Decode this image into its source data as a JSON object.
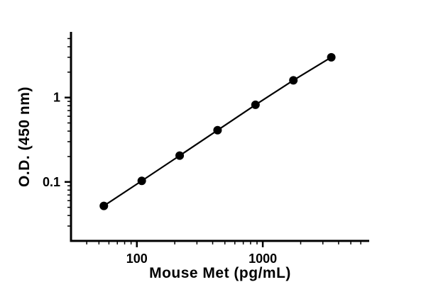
{
  "chart_data": {
    "type": "line",
    "title": "",
    "xlabel": "Mouse Met (pg/mL)",
    "ylabel": "O.D. (450 nm)",
    "xscale": "log",
    "yscale": "log",
    "xlim": [
      30,
      7000
    ],
    "ylim": [
      0.02,
      6
    ],
    "x": [
      54.7,
      109.4,
      218.8,
      437.5,
      875,
      1750,
      3500
    ],
    "y": [
      0.052,
      0.103,
      0.205,
      0.41,
      0.82,
      1.6,
      3.0
    ],
    "xticks": [
      {
        "value": 100,
        "label": "100"
      },
      {
        "value": 1000,
        "label": "1000"
      }
    ],
    "yticks": [
      {
        "value": 0.1,
        "label": "0.1"
      },
      {
        "value": 1,
        "label": "1"
      }
    ],
    "grid": false,
    "legend": false,
    "marker": {
      "shape": "circle",
      "color": "#000000",
      "radius": 6
    },
    "line": {
      "color": "#000000",
      "width": 2.2
    },
    "axis_color": "#000000",
    "background": "#ffffff"
  }
}
